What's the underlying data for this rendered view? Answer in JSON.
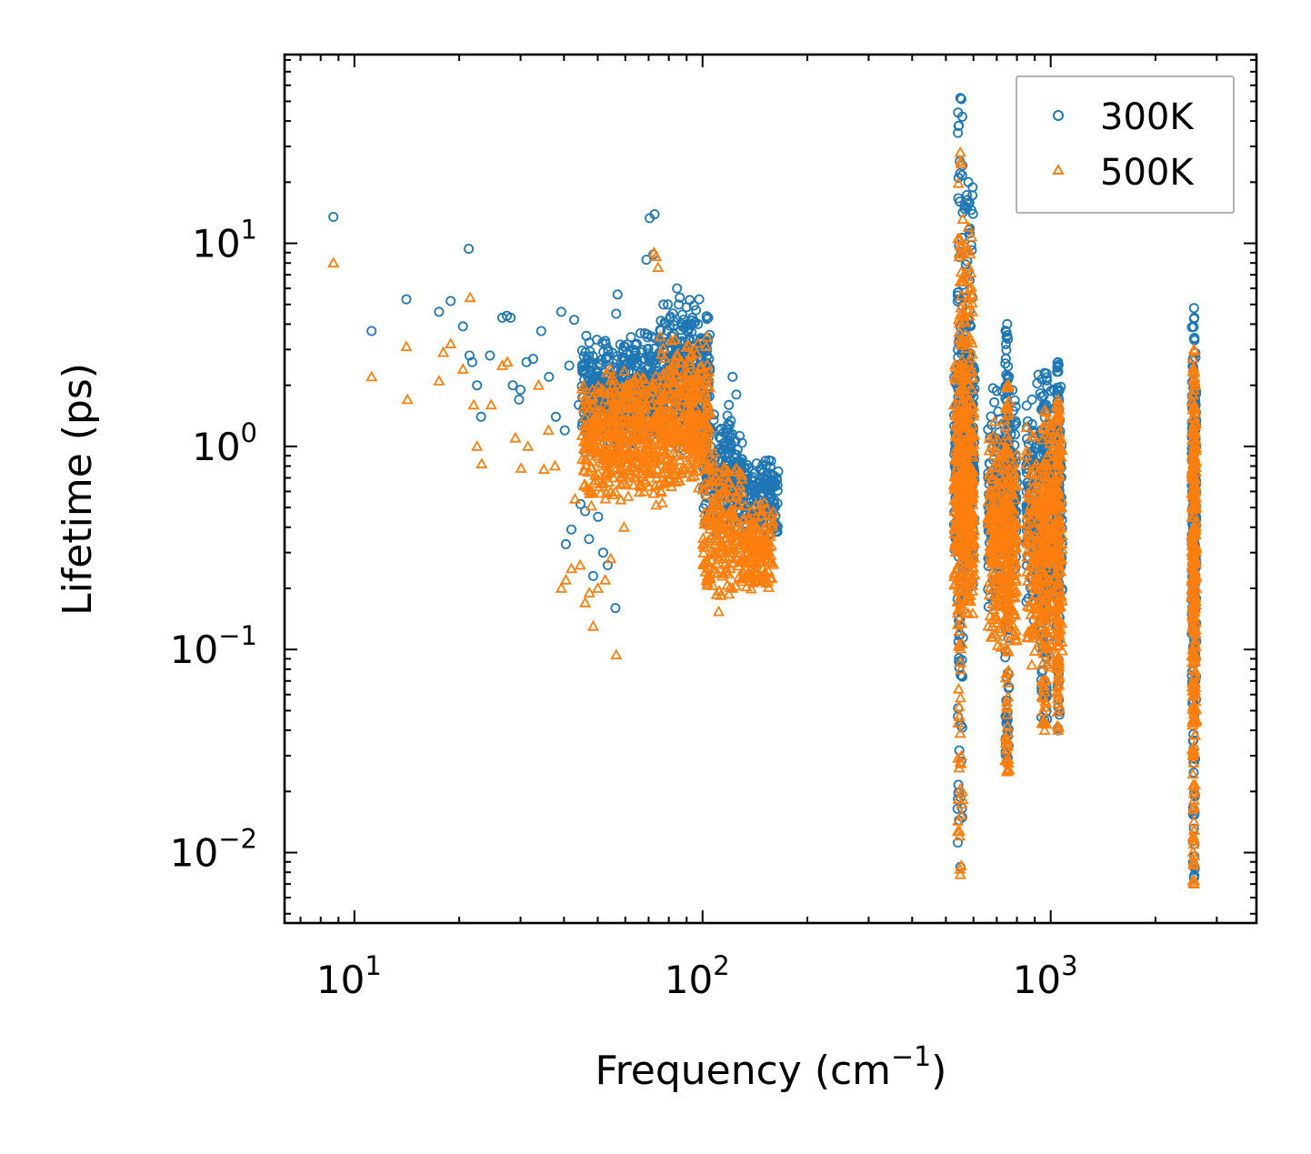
{
  "chart_data": {
    "type": "scatter",
    "title": "",
    "xlabel": "Frequency (cm",
    "xlabel_sup": "−1",
    "xlabel_end": ")",
    "ylabel": "Lifetime (ps)",
    "xscale": "log",
    "yscale": "log",
    "xlim": [
      6.3,
      3900
    ],
    "ylim": [
      0.0045,
      85
    ],
    "x_ticks": [
      {
        "value": 10,
        "base": "10",
        "exp": "1"
      },
      {
        "value": 100,
        "base": "10",
        "exp": "2"
      },
      {
        "value": 1000,
        "base": "10",
        "exp": "3"
      }
    ],
    "y_ticks": [
      {
        "value": 10,
        "base": "10",
        "exp": "1"
      },
      {
        "value": 1,
        "base": "10",
        "exp": "0"
      },
      {
        "value": 0.1,
        "base": "10",
        "exp": "−1"
      },
      {
        "value": 0.01,
        "base": "10",
        "exp": "−2"
      }
    ],
    "legend_position": "top-right",
    "grid": false,
    "series": [
      {
        "name": "300K",
        "color": "#1f77b4",
        "marker": "circle",
        "points": [
          [
            8.7,
            13.5
          ],
          [
            11.2,
            3.7
          ],
          [
            14.1,
            5.3
          ],
          [
            17.5,
            4.6
          ],
          [
            18.9,
            5.2
          ],
          [
            20.5,
            3.9
          ],
          [
            21.3,
            9.4
          ],
          [
            21.4,
            2.8
          ],
          [
            21.8,
            2.6
          ],
          [
            22.5,
            2.0
          ],
          [
            23.1,
            1.4
          ],
          [
            24.5,
            2.8
          ],
          [
            26.6,
            4.3
          ],
          [
            27.4,
            4.4
          ],
          [
            28.1,
            4.3
          ],
          [
            28.5,
            2.0
          ],
          [
            29.7,
            1.7
          ],
          [
            30.0,
            1.9
          ],
          [
            31.2,
            2.6
          ],
          [
            32.6,
            2.7
          ],
          [
            34.4,
            3.7
          ],
          [
            36.2,
            2.2
          ],
          [
            37.9,
            1.4
          ],
          [
            39.3,
            4.6
          ],
          [
            40.2,
            1.2
          ],
          [
            41.4,
            2.5
          ],
          [
            42.8,
            4.2
          ],
          [
            44.1,
            1.6
          ],
          [
            46.0,
            0.48
          ],
          [
            47.2,
            0.35
          ],
          [
            48.5,
            0.23
          ],
          [
            50.1,
            0.45
          ],
          [
            51.8,
            0.3
          ],
          [
            53.4,
            0.26
          ],
          [
            56.2,
            0.16
          ],
          [
            56.5,
            4.5
          ],
          [
            40.5,
            0.33
          ],
          [
            42.0,
            0.39
          ],
          [
            44.6,
            0.52
          ],
          [
            57.0,
            5.6
          ],
          [
            69.0,
            8.3
          ],
          [
            70.5,
            13.3
          ],
          [
            72.8,
            13.9
          ],
          [
            72.2,
            8.8
          ],
          [
            79.5,
            5.0
          ],
          [
            84.5,
            6.0
          ],
          [
            86.0,
            5.4
          ],
          [
            97.0,
            4.0
          ],
          [
            122.0,
            2.2
          ],
          [
            125.0,
            1.8
          ],
          [
            119.0,
            1.6
          ]
        ],
        "clusters": [
          {
            "x": [
              45,
              75
            ],
            "y": [
              0.9,
              3.8
            ],
            "n": 450
          },
          {
            "x": [
              75,
              105
            ],
            "y": [
              0.9,
              5.6
            ],
            "n": 350
          },
          {
            "x": [
              100,
              130
            ],
            "y": [
              0.35,
              1.6
            ],
            "n": 200
          },
          {
            "x": [
              130,
              165
            ],
            "y": [
              0.32,
              0.9
            ],
            "n": 160
          },
          {
            "x": [
              527,
              605
            ],
            "y": [
              0.25,
              3.5
            ],
            "n": 320
          },
          {
            "x": [
              660,
              800
            ],
            "y": [
              0.15,
              2.0
            ],
            "n": 300
          },
          {
            "x": [
              850,
              1080
            ],
            "y": [
              0.12,
              2.3
            ],
            "n": 320
          },
          {
            "x": [
              2540,
              2620
            ],
            "y": [
              0.05,
              4.3
            ],
            "n": 220
          }
        ],
        "spikes": [
          {
            "x": [
              540,
              560
            ],
            "y": [
              0.0085,
              52
            ]
          },
          {
            "x": [
              560,
              600
            ],
            "y": [
              0.2,
              20
            ]
          },
          {
            "x": [
              740,
              760
            ],
            "y": [
              0.028,
              4.0
            ]
          },
          {
            "x": [
              940,
              980
            ],
            "y": [
              0.045,
              2.3
            ]
          },
          {
            "x": [
              1040,
              1060
            ],
            "y": [
              0.04,
              2.6
            ]
          },
          {
            "x": [
              2560,
              2600
            ],
            "y": [
              0.0075,
              4.8
            ]
          }
        ]
      },
      {
        "name": "500K",
        "color": "#ff7f0e",
        "marker": "triangle",
        "points": [
          [
            8.7,
            8.0
          ],
          [
            11.2,
            2.2
          ],
          [
            14.1,
            3.1
          ],
          [
            14.2,
            1.7
          ],
          [
            17.5,
            2.1
          ],
          [
            18.0,
            2.9
          ],
          [
            18.9,
            3.2
          ],
          [
            20.5,
            2.4
          ],
          [
            21.5,
            5.4
          ],
          [
            22.0,
            1.6
          ],
          [
            22.5,
            1.0
          ],
          [
            23.2,
            0.82
          ],
          [
            24.7,
            1.6
          ],
          [
            26.6,
            2.5
          ],
          [
            27.5,
            2.6
          ],
          [
            29.0,
            1.1
          ],
          [
            30.1,
            0.78
          ],
          [
            31.5,
            1.0
          ],
          [
            33.8,
            2.0
          ],
          [
            35.0,
            0.77
          ],
          [
            36.1,
            1.2
          ],
          [
            37.7,
            0.8
          ],
          [
            39.3,
            0.2
          ],
          [
            40.5,
            0.22
          ],
          [
            42.0,
            0.25
          ],
          [
            43.0,
            0.55
          ],
          [
            44.5,
            0.26
          ],
          [
            46.0,
            0.17
          ],
          [
            47.3,
            0.19
          ],
          [
            48.5,
            0.13
          ],
          [
            50.0,
            0.2
          ],
          [
            52.5,
            0.22
          ],
          [
            54.5,
            0.28
          ],
          [
            56.5,
            0.094
          ],
          [
            59.5,
            0.4
          ],
          [
            72.5,
            9.0
          ],
          [
            73.5,
            8.6
          ],
          [
            74.5,
            7.6
          ]
        ],
        "clusters": [
          {
            "x": [
              45,
              75
            ],
            "y": [
              0.5,
              2.5
            ],
            "n": 450
          },
          {
            "x": [
              75,
              105
            ],
            "y": [
              0.5,
              3.6
            ],
            "n": 350
          },
          {
            "x": [
              100,
              130
            ],
            "y": [
              0.15,
              1.0
            ],
            "n": 200
          },
          {
            "x": [
              130,
              160
            ],
            "y": [
              0.18,
              0.55
            ],
            "n": 150
          },
          {
            "x": [
              527,
              605
            ],
            "y": [
              0.12,
              3.0
            ],
            "n": 320
          },
          {
            "x": [
              660,
              800
            ],
            "y": [
              0.09,
              1.4
            ],
            "n": 300
          },
          {
            "x": [
              850,
              1080
            ],
            "y": [
              0.07,
              1.5
            ],
            "n": 320
          },
          {
            "x": [
              2540,
              2620
            ],
            "y": [
              0.03,
              3.0
            ],
            "n": 220
          }
        ],
        "spikes": [
          {
            "x": [
              540,
              560
            ],
            "y": [
              0.0078,
              28
            ]
          },
          {
            "x": [
              560,
              600
            ],
            "y": [
              0.15,
              12
            ]
          },
          {
            "x": [
              740,
              760
            ],
            "y": [
              0.025,
              2.0
            ]
          },
          {
            "x": [
              940,
              980
            ],
            "y": [
              0.04,
              1.5
            ]
          },
          {
            "x": [
              1040,
              1060
            ],
            "y": [
              0.04,
              1.7
            ]
          },
          {
            "x": [
              2560,
              2600
            ],
            "y": [
              0.007,
              3.0
            ]
          }
        ]
      }
    ]
  }
}
